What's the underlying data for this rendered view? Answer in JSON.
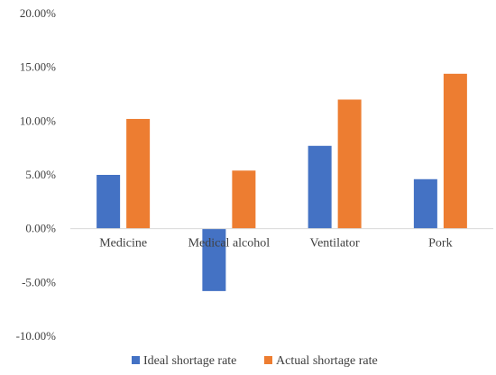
{
  "chart_data": {
    "type": "bar",
    "categories": [
      "Medicine",
      "Medical alcohol",
      "Ventilator",
      "Pork"
    ],
    "series": [
      {
        "name": "Ideal shortage rate",
        "values": [
          0.05,
          -0.058,
          0.077,
          0.046
        ],
        "color": "#4472C4"
      },
      {
        "name": "Actual shortage rate",
        "values": [
          0.102,
          0.054,
          0.12,
          0.144
        ],
        "color": "#ED7D31"
      }
    ],
    "ylim": [
      -0.1,
      0.2
    ],
    "yticks": [
      -0.1,
      -0.05,
      0.0,
      0.05,
      0.1,
      0.15,
      0.2
    ],
    "ytick_labels": [
      "-10.00%",
      "-5.00%",
      "0.00%",
      "5.00%",
      "10.00%",
      "15.00%",
      "20.00%"
    ],
    "title": "",
    "xlabel": "",
    "ylabel": "",
    "grid": false,
    "legend_position": "bottom",
    "axis_color": "#D9D9D9"
  }
}
